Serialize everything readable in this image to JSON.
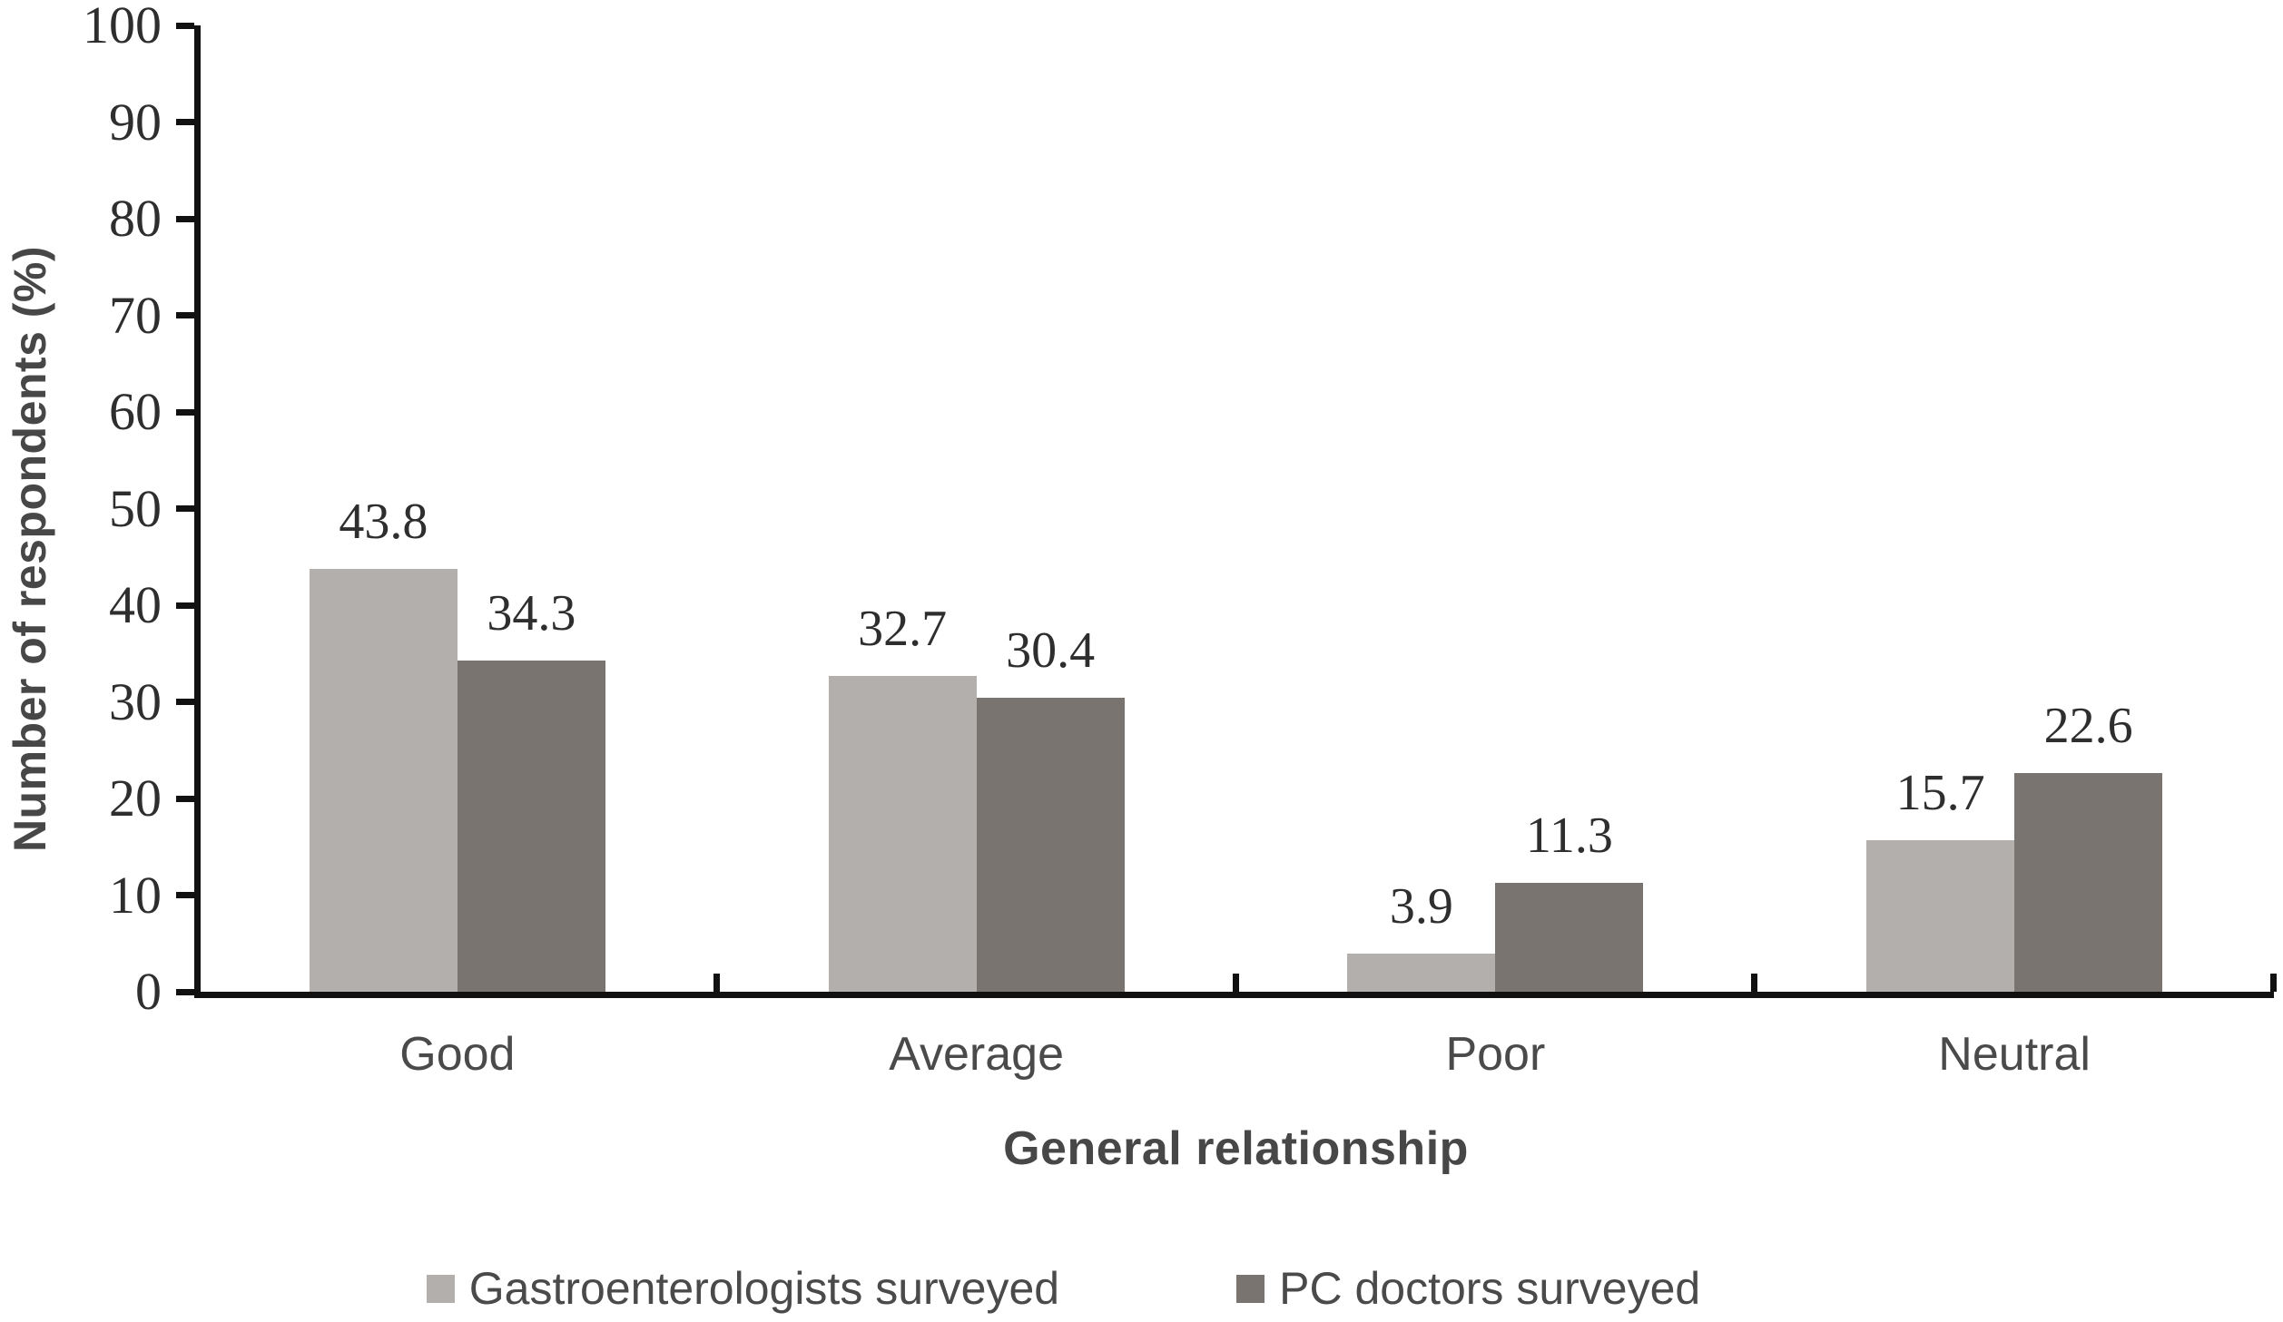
{
  "chart_data": {
    "type": "bar",
    "title": "",
    "categories": [
      "Good",
      "Average",
      "Poor",
      "Neutral"
    ],
    "series": [
      {
        "name": "Gastroenterologists surveyed",
        "color": "#b2afac",
        "values": [
          43.8,
          32.7,
          3.9,
          15.7
        ]
      },
      {
        "name": "PC doctors surveyed",
        "color": "#7a7470",
        "values": [
          34.3,
          30.4,
          11.3,
          22.6
        ]
      }
    ],
    "xlabel": "General relationship",
    "ylabel": "Number of respondents (%)",
    "ylim": [
      0,
      100
    ],
    "yticks": [
      0,
      10,
      20,
      30,
      40,
      50,
      60,
      70,
      80,
      90,
      100
    ],
    "grid": false,
    "legend_position": "bottom",
    "data_labels": true,
    "axis_color": "#111111",
    "label_color_serif": "#2e2e2e",
    "label_color_sans": "#4a4a4a"
  }
}
